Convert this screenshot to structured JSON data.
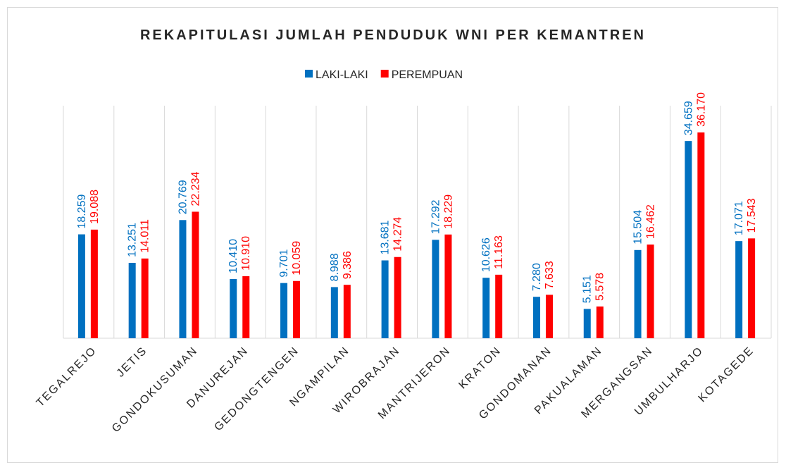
{
  "chart_data": {
    "type": "bar",
    "title": "REKAPITULASI JUMLAH PENDUDUK WNI PER KEMANTREN",
    "categories": [
      "TEGALREJO",
      "JETIS",
      "GONDOKUSUMAN",
      "DANUREJAN",
      "GEDONGTENGEN",
      "NGAMPILAN",
      "WIROBRAJAN",
      "MANTRIJERON",
      "KRATON",
      "GONDOMANAN",
      "PAKUALAMAN",
      "MERGANGSAN",
      "UMBULHARJO",
      "KOTAGEDE"
    ],
    "series": [
      {
        "name": "LAKI-LAKI",
        "color": "#0070c0",
        "values": [
          18259,
          13251,
          20769,
          10410,
          9701,
          8988,
          13681,
          17292,
          10626,
          7280,
          5151,
          15504,
          34659,
          17071
        ],
        "value_labels": [
          "18.259",
          "13.251",
          "20.769",
          "10.410",
          "9.701",
          "8.988",
          "13.681",
          "17.292",
          "10.626",
          "7.280",
          "5.151",
          "15.504",
          "34.659",
          "17.071"
        ]
      },
      {
        "name": "PEREMPUAN",
        "color": "#ff0000",
        "values": [
          19088,
          14011,
          22234,
          10910,
          10059,
          9386,
          14274,
          18229,
          11163,
          7633,
          5578,
          16462,
          36170,
          17543
        ],
        "value_labels": [
          "19.088",
          "14.011",
          "22.234",
          "10.910",
          "10.059",
          "9.386",
          "14.274",
          "18.229",
          "11.163",
          "7.633",
          "5.578",
          "16.462",
          "36.170",
          "17.543"
        ]
      }
    ],
    "ylim": [
      0,
      40000
    ],
    "legend": "top"
  }
}
